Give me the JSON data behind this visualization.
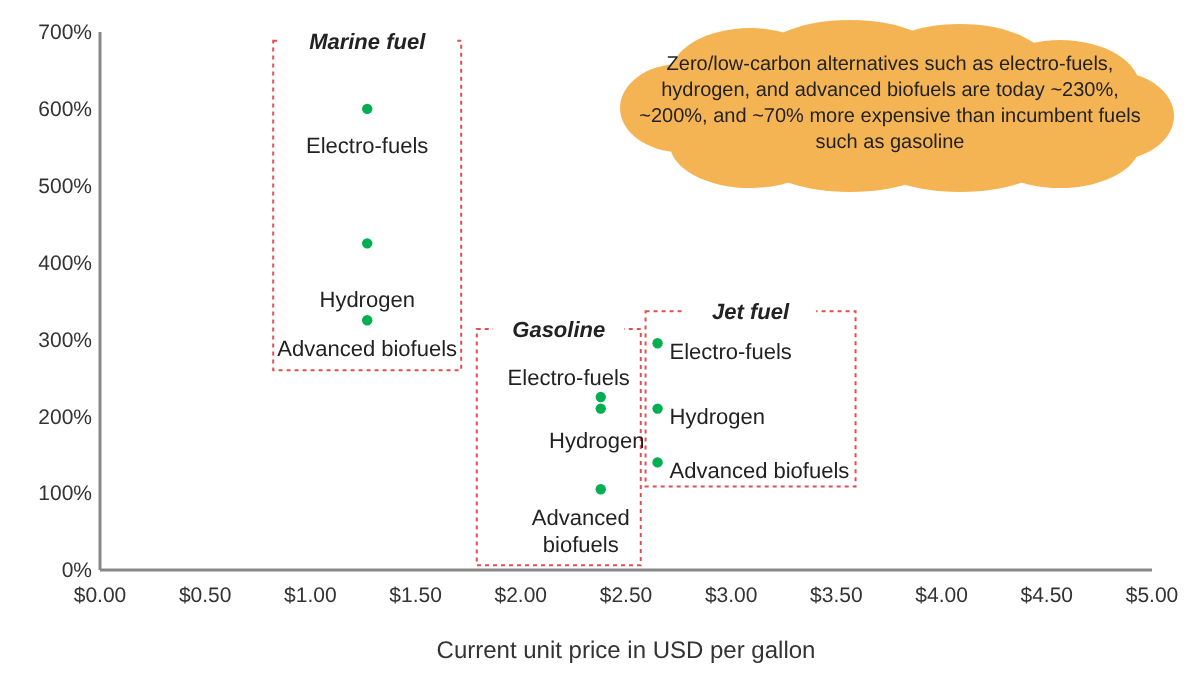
{
  "chart_data": {
    "type": "scatter",
    "xlabel": "Current unit price in USD per gallon",
    "xlim": [
      0,
      5
    ],
    "xticks": [
      {
        "value": 0,
        "label": "$0.00"
      },
      {
        "value": 0.5,
        "label": "$0.50"
      },
      {
        "value": 1,
        "label": "$1.00"
      },
      {
        "value": 1.5,
        "label": "$1.50"
      },
      {
        "value": 2,
        "label": "$2.00"
      },
      {
        "value": 2.5,
        "label": "$2.50"
      },
      {
        "value": 3,
        "label": "$3.00"
      },
      {
        "value": 3.5,
        "label": "$3.50"
      },
      {
        "value": 4,
        "label": "$4.00"
      },
      {
        "value": 4.5,
        "label": "$4.50"
      },
      {
        "value": 5,
        "label": "$5.00"
      }
    ],
    "ylim": [
      0,
      700
    ],
    "yticks": [
      {
        "value": 0,
        "label": "0%"
      },
      {
        "value": 100,
        "label": "100%"
      },
      {
        "value": 200,
        "label": "200%"
      },
      {
        "value": 300,
        "label": "300%"
      },
      {
        "value": 400,
        "label": "400%"
      },
      {
        "value": 500,
        "label": "500%"
      },
      {
        "value": 600,
        "label": "600%"
      },
      {
        "value": 700,
        "label": "700%"
      }
    ],
    "grid": false,
    "marker": "circle",
    "series": [
      {
        "name": "Marine fuel",
        "color": "#00b050",
        "x": [
          1.27,
          1.27,
          1.27
        ],
        "values": [
          600,
          425,
          325
        ]
      },
      {
        "name": "Gasoline",
        "color": "#00b050",
        "x": [
          2.38,
          2.38,
          2.38
        ],
        "values": [
          225,
          210,
          105
        ]
      },
      {
        "name": "Jet fuel",
        "color": "#00b050",
        "x": [
          2.65,
          2.65,
          2.65
        ],
        "values": [
          295,
          210,
          140
        ]
      }
    ],
    "annotations": [
      {
        "text": "Electro-fuels",
        "x": 1.27,
        "y": 600
      },
      {
        "text": "Hydrogen",
        "x": 1.27,
        "y": 425
      },
      {
        "text": "Advanced biofuels",
        "x": 1.27,
        "y": 325
      },
      {
        "text": "Electro-fuels",
        "x": 2.38,
        "y": 225
      },
      {
        "text": "Hydrogen",
        "x": 2.38,
        "y": 210
      },
      {
        "text": "Advanced biofuels",
        "x": 2.38,
        "y": 105
      },
      {
        "text": "Electro-fuels",
        "x": 2.65,
        "y": 295
      },
      {
        "text": "Hydrogen",
        "x": 2.65,
        "y": 210
      },
      {
        "text": "Advanced biofuels",
        "x": 2.65,
        "y": 140
      },
      "Zero/low-carbon alternatives such as electro-fuels, hydrogen, and advanced biofuels are today ~230%, ~200%, and ~70% more expensive than incumbent fuels such as gasoline"
    ]
  }
}
